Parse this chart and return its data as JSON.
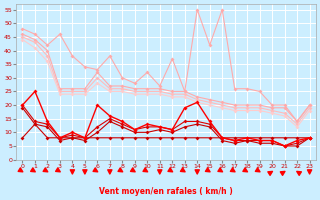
{
  "title": "",
  "xlabel": "Vent moyen/en rafales ( km/h )",
  "background_color": "#cceeff",
  "grid_color": "#ffffff",
  "hours": [
    0,
    1,
    2,
    3,
    4,
    5,
    6,
    7,
    8,
    9,
    10,
    11,
    12,
    13,
    14,
    15,
    16,
    17,
    18,
    19,
    20,
    21,
    22,
    23
  ],
  "ylim": [
    0,
    57
  ],
  "yticks": [
    0,
    5,
    10,
    15,
    20,
    25,
    30,
    35,
    40,
    45,
    50,
    55
  ],
  "series": [
    {
      "data": [
        48,
        46,
        42,
        46,
        38,
        34,
        33,
        38,
        30,
        28,
        32,
        27,
        37,
        25,
        55,
        42,
        55,
        26,
        26,
        25,
        20,
        20,
        14,
        20
      ],
      "color": "#ffaaaa",
      "marker": "D",
      "markersize": 2,
      "linewidth": 0.8,
      "zorder": 2
    },
    {
      "data": [
        46,
        44,
        40,
        26,
        26,
        26,
        32,
        27,
        27,
        26,
        26,
        26,
        25,
        25,
        23,
        22,
        21,
        20,
        20,
        20,
        19,
        19,
        14,
        20
      ],
      "color": "#ffaaaa",
      "marker": "D",
      "markersize": 2,
      "linewidth": 0.8,
      "zorder": 2
    },
    {
      "data": [
        45,
        43,
        38,
        25,
        25,
        25,
        30,
        26,
        26,
        25,
        25,
        25,
        24,
        24,
        22,
        21,
        20,
        19,
        19,
        19,
        18,
        17,
        13,
        19
      ],
      "color": "#ffbbbb",
      "marker": "D",
      "markersize": 2,
      "linewidth": 0.8,
      "zorder": 2
    },
    {
      "data": [
        44,
        41,
        36,
        24,
        24,
        24,
        28,
        25,
        25,
        24,
        24,
        24,
        23,
        23,
        21,
        20,
        19,
        18,
        18,
        18,
        17,
        16,
        12,
        18
      ],
      "color": "#ffcccc",
      "marker": "D",
      "markersize": 2,
      "linewidth": 0.8,
      "zorder": 2
    },
    {
      "data": [
        20,
        25,
        14,
        8,
        10,
        8,
        20,
        16,
        14,
        11,
        13,
        12,
        11,
        19,
        21,
        14,
        8,
        7,
        8,
        7,
        7,
        5,
        7,
        8
      ],
      "color": "#ff0000",
      "marker": "D",
      "markersize": 2,
      "linewidth": 1.0,
      "zorder": 4
    },
    {
      "data": [
        20,
        14,
        13,
        8,
        9,
        8,
        12,
        15,
        13,
        11,
        12,
        12,
        11,
        14,
        14,
        13,
        8,
        7,
        7,
        7,
        7,
        5,
        6,
        8
      ],
      "color": "#dd0000",
      "marker": "D",
      "markersize": 2,
      "linewidth": 0.8,
      "zorder": 3
    },
    {
      "data": [
        19,
        13,
        12,
        7,
        8,
        7,
        10,
        14,
        12,
        10,
        10,
        11,
        10,
        12,
        13,
        12,
        7,
        6,
        7,
        6,
        6,
        5,
        5,
        8
      ],
      "color": "#cc0000",
      "marker": "D",
      "markersize": 2,
      "linewidth": 0.8,
      "zorder": 3
    },
    {
      "data": [
        8,
        13,
        8,
        8,
        8,
        8,
        8,
        8,
        8,
        8,
        8,
        8,
        8,
        8,
        8,
        8,
        8,
        8,
        8,
        8,
        8,
        8,
        8,
        8
      ],
      "color": "#cc0000",
      "marker": "D",
      "markersize": 2,
      "linewidth": 0.8,
      "zorder": 3
    }
  ],
  "wind_arrows": {
    "color": "#ff0000",
    "angles_deg": [
      45,
      45,
      45,
      45,
      0,
      0,
      45,
      0,
      45,
      45,
      45,
      0,
      45,
      45,
      0,
      45,
      45,
      45,
      45,
      45,
      135,
      135,
      225,
      0
    ]
  }
}
